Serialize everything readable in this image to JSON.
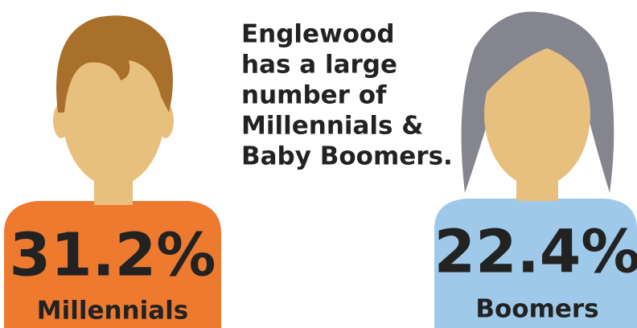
{
  "heading": {
    "lines": [
      "Englewood",
      "has a large",
      "number of",
      "Millennials &",
      "Baby Boomers."
    ]
  },
  "figures": [
    {
      "percent": "31.2%",
      "label": "Millennials"
    },
    {
      "percent": "22.4%",
      "label": "Boomers"
    }
  ]
}
